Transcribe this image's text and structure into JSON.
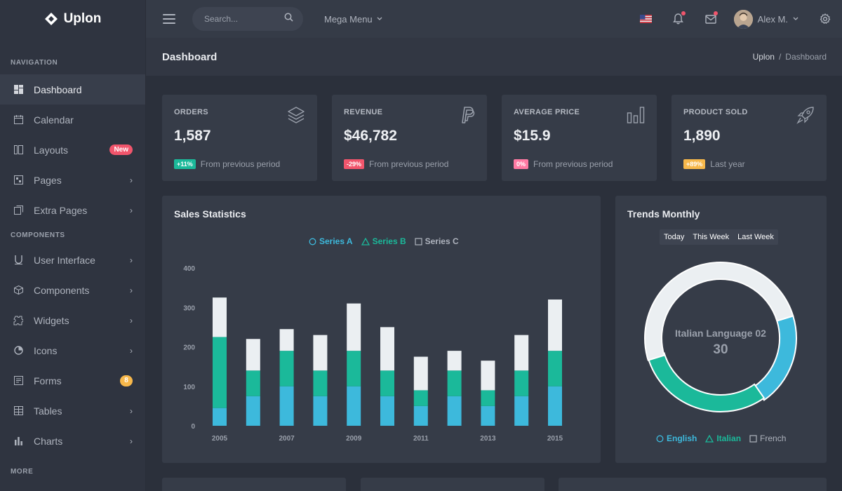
{
  "app": {
    "name": "Uplon"
  },
  "sidebar": {
    "sections": {
      "navigation": "NAVIGATION",
      "components": "COMPONENTS",
      "more": "MORE"
    },
    "items": [
      {
        "label": "Dashboard",
        "icon": "dashboard-icon",
        "active": true
      },
      {
        "label": "Calendar",
        "icon": "calendar-icon"
      },
      {
        "label": "Layouts",
        "icon": "layouts-icon",
        "badge": "New"
      },
      {
        "label": "Pages",
        "icon": "pages-icon"
      },
      {
        "label": "Extra Pages",
        "icon": "extra-pages-icon"
      },
      {
        "label": "User Interface",
        "icon": "user-interface-icon"
      },
      {
        "label": "Components",
        "icon": "components-icon"
      },
      {
        "label": "Widgets",
        "icon": "widgets-icon"
      },
      {
        "label": "Icons",
        "icon": "icons-icon"
      },
      {
        "label": "Forms",
        "icon": "forms-icon",
        "badge": "8"
      },
      {
        "label": "Tables",
        "icon": "tables-icon"
      },
      {
        "label": "Charts",
        "icon": "charts-icon"
      }
    ]
  },
  "topbar": {
    "search_placeholder": "Search...",
    "mega_menu": "Mega Menu",
    "user_name": "Alex M."
  },
  "page": {
    "title": "Dashboard",
    "breadcrumb": {
      "root": "Uplon",
      "separator": "/",
      "current": "Dashboard"
    }
  },
  "stats": [
    {
      "title": "ORDERS",
      "value": "1,587",
      "change": "+11%",
      "change_color": "#1bb99a",
      "note": "From previous period",
      "icon": "layers-icon"
    },
    {
      "title": "REVENUE",
      "value": "$46,782",
      "change": "-29%",
      "change_color": "#f1556c",
      "note": "From previous period",
      "icon": "paypal-icon"
    },
    {
      "title": "AVERAGE PRICE",
      "value": "$15.9",
      "change": "0%",
      "change_color": "#ff7aa3",
      "note": "From previous period",
      "icon": "bar-chart-icon"
    },
    {
      "title": "PRODUCT SOLD",
      "value": "1,890",
      "change": "+89%",
      "change_color": "#f7b84b",
      "note": "Last year",
      "icon": "rocket-icon"
    }
  ],
  "sales": {
    "title": "Sales Statistics",
    "legend": [
      "Series A",
      "Series B",
      "Series C"
    ]
  },
  "trends": {
    "title": "Trends Monthly",
    "tabs": [
      "Today",
      "This Week",
      "Last Week"
    ],
    "center_label": "Italian Language 02",
    "center_value": "30",
    "legend": [
      "English",
      "Italian",
      "French"
    ]
  },
  "colors": {
    "series_a": "#3db9dc",
    "series_b": "#1bb99a",
    "series_c": "#ebeff2"
  },
  "chart_data": [
    {
      "type": "bar",
      "stacked": true,
      "title": "Sales Statistics",
      "x": [
        2005,
        2006,
        2007,
        2008,
        2009,
        2010,
        2011,
        2012,
        2013,
        2014,
        2015
      ],
      "x_tick_labels": [
        "2005",
        "2007",
        "2009",
        "2011",
        "2013",
        "2015"
      ],
      "ylim": [
        0,
        400
      ],
      "y_ticks": [
        0,
        100,
        200,
        300,
        400
      ],
      "grid": false,
      "legend_position": "top-center",
      "series": [
        {
          "name": "Series A",
          "values": [
            45,
            75,
            100,
            75,
            100,
            75,
            50,
            75,
            50,
            75,
            100
          ]
        },
        {
          "name": "Series B",
          "values": [
            180,
            65,
            90,
            65,
            90,
            65,
            40,
            65,
            40,
            65,
            90
          ]
        },
        {
          "name": "Series C",
          "values": [
            100,
            80,
            55,
            90,
            120,
            110,
            85,
            50,
            75,
            90,
            130
          ]
        }
      ]
    },
    {
      "type": "pie",
      "donut": true,
      "title": "Trends Monthly",
      "legend_position": "bottom-center",
      "series": [
        {
          "name": "English",
          "value": 20
        },
        {
          "name": "Italian",
          "value": 30
        },
        {
          "name": "French",
          "value": 50
        }
      ]
    }
  ]
}
